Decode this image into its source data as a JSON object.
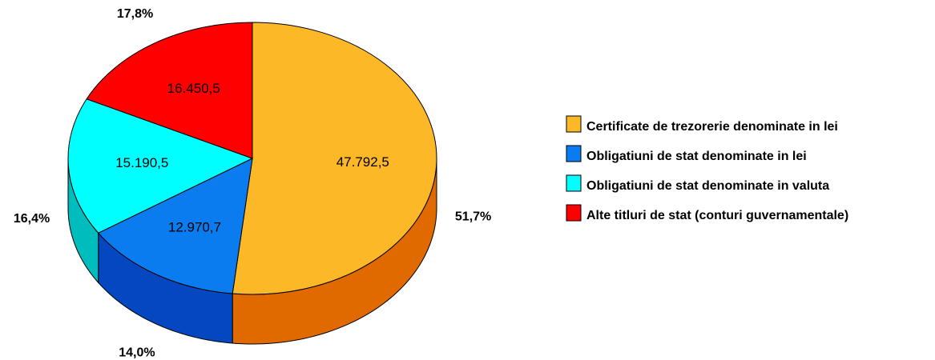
{
  "chart_data": {
    "type": "pie3d",
    "categories": [
      "Certificate de trezorerie denominate in lei",
      "Obligatiuni de stat denominate in lei",
      "Obligatiuni de stat denominate in valuta",
      "Alte titluri de stat (conturi guvernamentale)"
    ],
    "values": [
      47792.5,
      12970.7,
      15190.5,
      16450.5
    ],
    "value_labels": [
      "47.792,5",
      "12.970,7",
      "15.190,5",
      "16.450,5"
    ],
    "percents": [
      51.7,
      14.0,
      16.4,
      17.8
    ],
    "percent_labels": [
      "51,7%",
      "14,0%",
      "16,4%",
      "17,8%"
    ],
    "colors": [
      "#FDB827",
      "#0A7CF0",
      "#00FFFF",
      "#FF0000"
    ],
    "side_colors": [
      "#E06A00",
      "#0547C0",
      "#00BDBD",
      "#B00000"
    ],
    "legend": "right"
  }
}
